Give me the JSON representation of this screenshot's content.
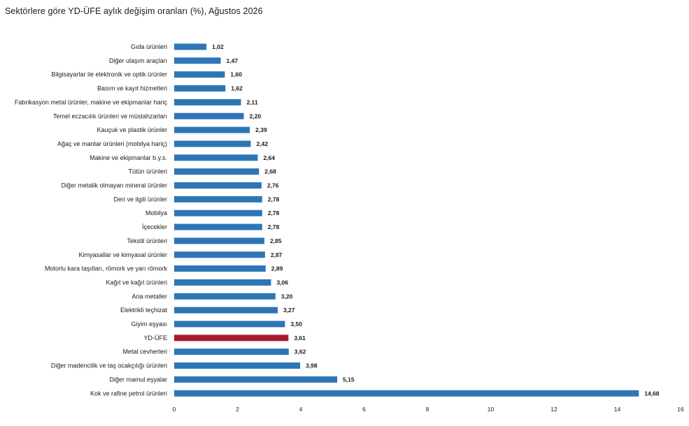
{
  "chart_data": {
    "type": "bar",
    "orientation": "horizontal",
    "title": "Sektörlere göre YD-ÜFE aylık değişim oranları (%), Ağustos 2026",
    "xlabel": "",
    "ylabel": "",
    "xlim": [
      0,
      16
    ],
    "xticks": [
      "0",
      "2",
      "4",
      "6",
      "8",
      "10",
      "12",
      "14",
      "16"
    ],
    "grid": false,
    "colors": {
      "default": "#2e75b6",
      "highlight": "#a6192e"
    },
    "highlight_category": "YD-ÜFE",
    "categories": [
      "Gıda ürünleri",
      "Diğer ulaşım araçları",
      "Bilgisayarlar ile elektronik ve optik ürünler",
      "Basım ve kayıt hizmetleri",
      "Fabrikasyon metal ürünler, makine ve ekipmanlar hariç",
      "Temel eczacılık ürünleri ve müstahzarları",
      "Kauçuk ve plastik ürünler",
      "Ağaç ve mantar ürünleri (mobilya hariç)",
      "Makine ve ekipmanlar b.y.s.",
      "Tütün ürünleri",
      "Diğer metalik olmayan mineral ürünler",
      "Deri ve ilgili ürünler",
      "Mobilya",
      "İçecekler",
      "Tekstil ürünleri",
      "Kimyasallar ve kimyasal ürünler",
      "Motorlu kara taşıtları, römork ve yarı römork",
      "Kağıt ve kağıt ürünleri",
      "Ana metaller",
      "Elektrikli teçhizat",
      "Giyim eşyası",
      "YD-ÜFE",
      "Metal cevherleri",
      "Diğer madencilik ve taş ocakçılığı ürünleri",
      "Diğer mamul eşyalar",
      "Kok ve rafine petrol ürünleri"
    ],
    "values": [
      1.02,
      1.47,
      1.6,
      1.62,
      2.11,
      2.2,
      2.39,
      2.42,
      2.64,
      2.68,
      2.76,
      2.78,
      2.78,
      2.78,
      2.85,
      2.87,
      2.89,
      3.06,
      3.2,
      3.27,
      3.5,
      3.61,
      3.62,
      3.98,
      5.15,
      14.68
    ],
    "value_labels": [
      "1,02",
      "1,47",
      "1,60",
      "1,62",
      "2,11",
      "2,20",
      "2,39",
      "2,42",
      "2,64",
      "2,68",
      "2,76",
      "2,78",
      "2,78",
      "2,78",
      "2,85",
      "2,87",
      "2,89",
      "3,06",
      "3,20",
      "3,27",
      "3,50",
      "3,61",
      "3,62",
      "3,98",
      "5,15",
      "14,68"
    ]
  }
}
